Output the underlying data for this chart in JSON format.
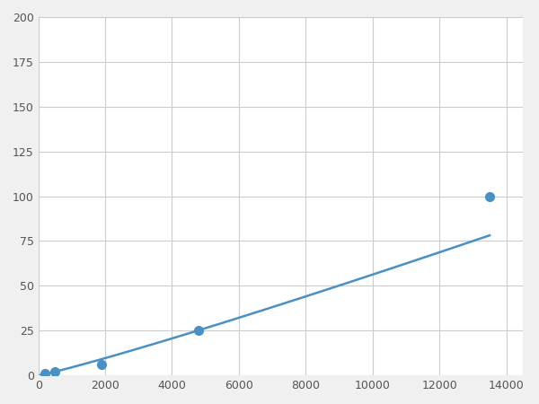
{
  "x_points": [
    200,
    500,
    1900,
    4800,
    13500
  ],
  "y_points": [
    1,
    2,
    6,
    25,
    100
  ],
  "line_color": "#4A90C4",
  "marker_color": "#4A90C4",
  "marker_size": 7,
  "line_width": 1.8,
  "xlim": [
    0,
    14500
  ],
  "ylim": [
    0,
    200
  ],
  "xticks": [
    0,
    2000,
    4000,
    6000,
    8000,
    10000,
    12000,
    14000
  ],
  "yticks": [
    0,
    25,
    50,
    75,
    100,
    125,
    150,
    175,
    200
  ],
  "grid_color": "#cccccc",
  "bg_color": "#ffffff",
  "fig_bg_color": "#f0f0f0",
  "tick_label_color": "#555555",
  "tick_label_size": 9
}
